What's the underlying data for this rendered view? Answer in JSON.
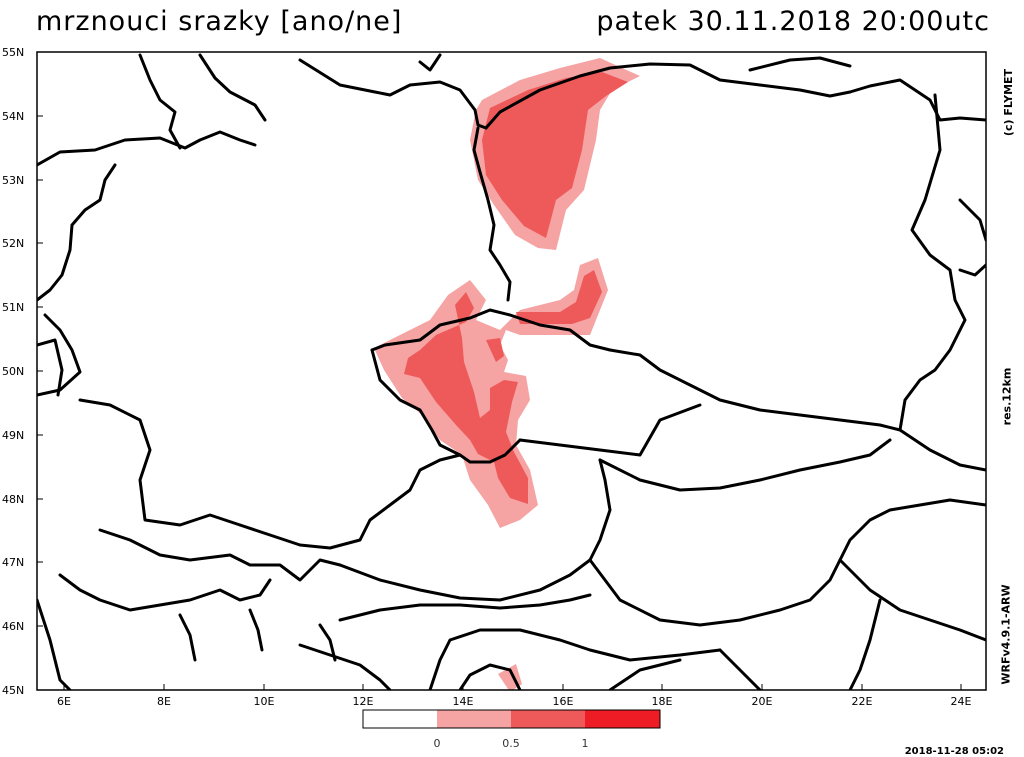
{
  "title": {
    "left": "mrznouci srazky [ano/ne]",
    "right": "patek 30.11.2018 20:00utc"
  },
  "side_labels": {
    "copyright": "(c) FLYMET",
    "resolution": "res.12km",
    "model": "WRFv4.9.1-ARW"
  },
  "timestamp": "2018-11-28 05:02",
  "axes": {
    "lat_labels": [
      "55N",
      "54N",
      "53N",
      "52N",
      "51N",
      "50N",
      "49N",
      "48N",
      "47N",
      "46N",
      "45N"
    ],
    "lon_labels": [
      "6E",
      "8E",
      "10E",
      "12E",
      "14E",
      "16E",
      "18E",
      "20E",
      "22E",
      "24E"
    ]
  },
  "legend": {
    "ticks": [
      "0",
      "0.5",
      "1"
    ],
    "colors": [
      "#ffffff",
      "#f5a3a3",
      "#ee5a5a",
      "#ee1c25"
    ]
  },
  "colors": {
    "outer_band": "#f5a3a3",
    "inner_band": "#ee5a5a",
    "border": "#000000"
  }
}
